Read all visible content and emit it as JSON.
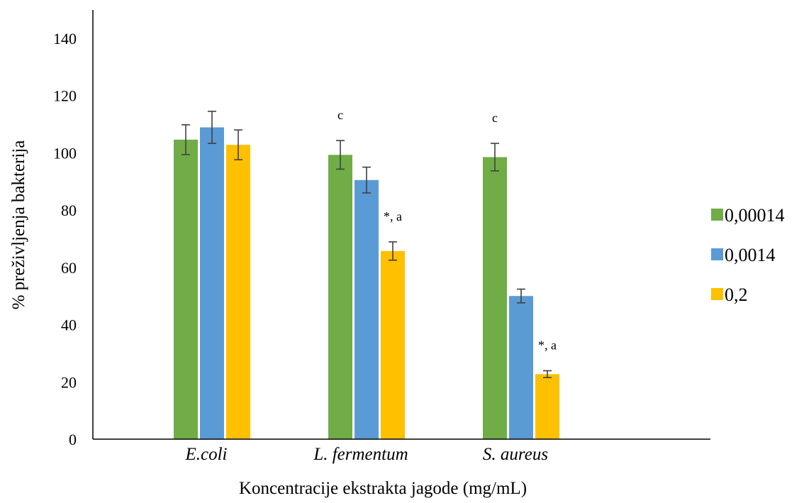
{
  "chart_data": {
    "type": "bar",
    "title": "",
    "xlabel": "Koncentracije ekstrakta jagode (mg/mL)",
    "ylabel": "% preživljenja bakterija",
    "ylim": [
      0,
      140
    ],
    "yticks": [
      0,
      20,
      40,
      60,
      80,
      100,
      120,
      140
    ],
    "categories": [
      "E.coli",
      "L. fermentum",
      "S. aureus"
    ],
    "series": [
      {
        "name": "0,00014",
        "color": "#70AD47",
        "values": [
          104.6,
          99.3,
          98.5
        ],
        "errors": [
          5.2,
          5.0,
          4.8
        ]
      },
      {
        "name": "0,0014",
        "color": "#5B9BD5",
        "values": [
          108.9,
          90.5,
          50.0
        ],
        "errors": [
          5.6,
          4.5,
          2.4
        ]
      },
      {
        "name": "0,2",
        "color": "#FFC000",
        "values": [
          102.8,
          65.7,
          22.7
        ],
        "errors": [
          5.2,
          3.2,
          1.2
        ]
      }
    ],
    "annotations": [
      {
        "text": "c",
        "category": 1,
        "series": 0
      },
      {
        "text": "*, a",
        "category": 1,
        "series": 2
      },
      {
        "text": "c",
        "category": 2,
        "series": 0
      },
      {
        "text": "*, a",
        "category": 2,
        "series": 2
      }
    ],
    "legend": "right",
    "grid": false
  }
}
